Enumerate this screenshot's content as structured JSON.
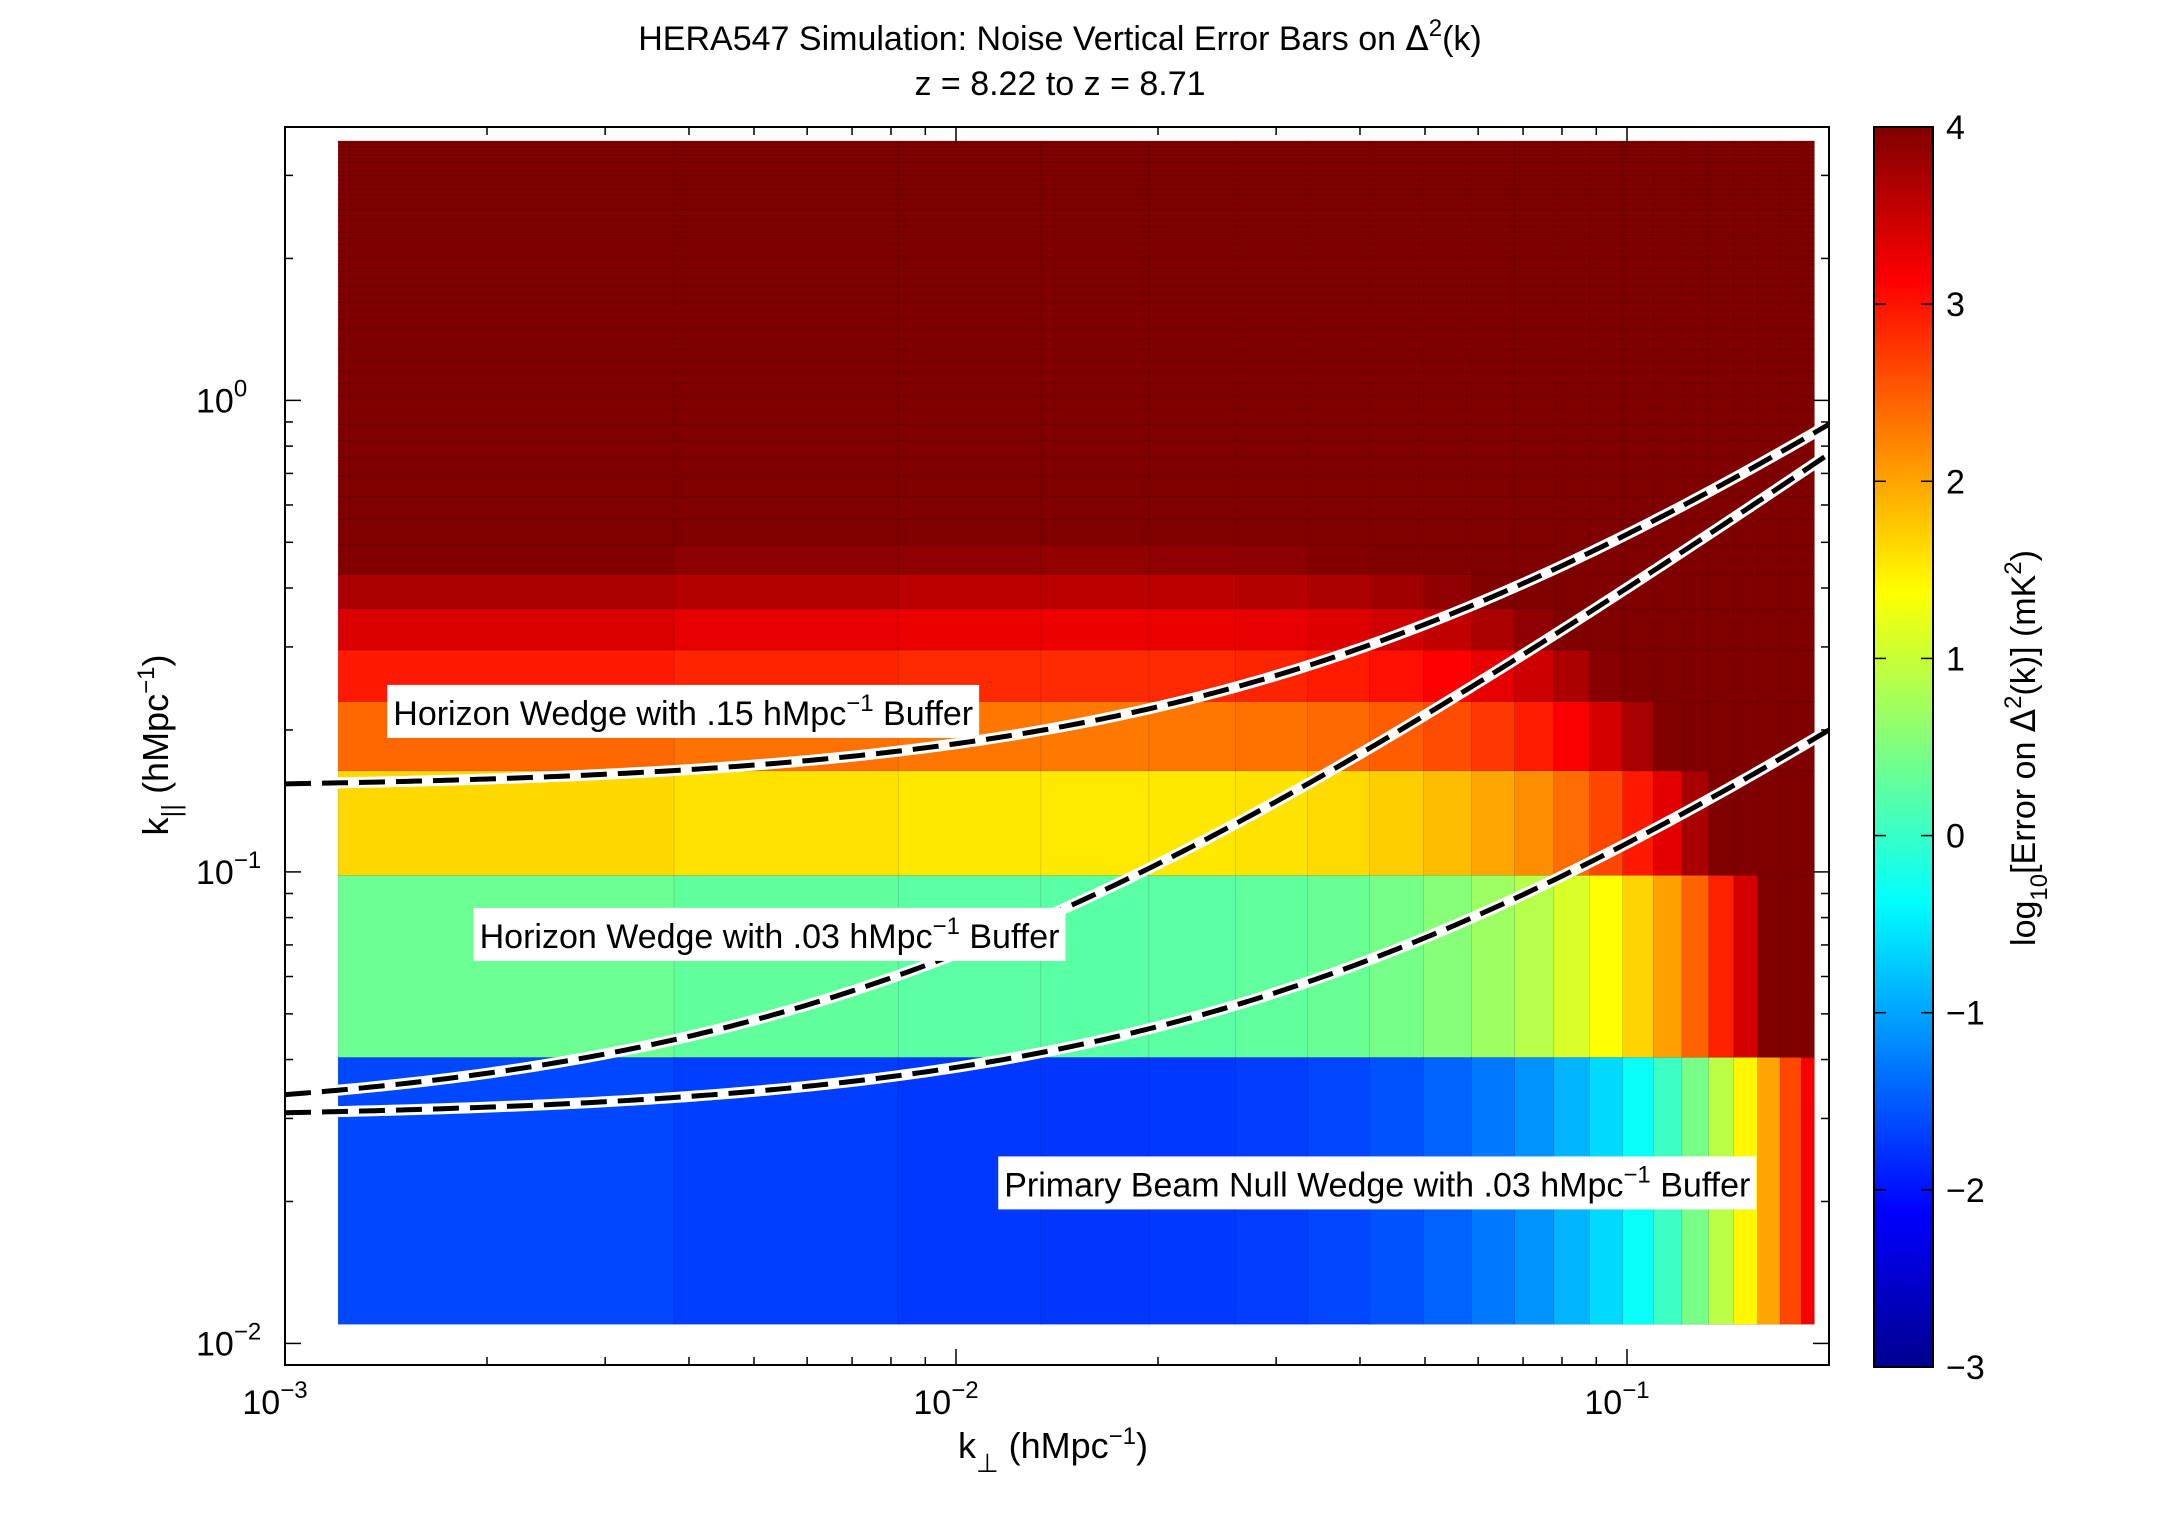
{
  "chart_data": {
    "type": "heatmap",
    "title_line1_main": "HERA547 Simulation: Noise Vertical Error Bars on ",
    "title_line1_delta": "Δ",
    "title_line1_sup": "2",
    "title_line1_tail": "(k)",
    "title_line2": "z = 8.22 to z = 8.71",
    "xlabel": {
      "base": "k",
      "sub": "⊥",
      "unit_main": "  (hMpc",
      "unit_sup": "−1",
      "unit_tail": ")"
    },
    "ylabel": {
      "base": "k",
      "sub": "||",
      "unit_main": "  (hMpc",
      "unit_sup": "−1",
      "unit_tail": ")"
    },
    "x_scale": "log",
    "y_scale": "log",
    "xlim": [
      0.001,
      0.2
    ],
    "ylim": [
      0.009,
      3.8
    ],
    "x_ticks": [
      {
        "value": 0.001,
        "base": "10",
        "exp": "−3"
      },
      {
        "value": 0.01,
        "base": "10",
        "exp": "−2"
      },
      {
        "value": 0.1,
        "base": "10",
        "exp": "−1"
      }
    ],
    "y_ticks": [
      {
        "value": 0.01,
        "base": "10",
        "exp": "−2"
      },
      {
        "value": 0.1,
        "base": "10",
        "exp": "−1"
      },
      {
        "value": 1,
        "base": "10",
        "exp": "0"
      }
    ],
    "data_extent": {
      "x": [
        0.0012,
        0.19
      ],
      "y": [
        0.011,
        3.55
      ]
    },
    "colorbar": {
      "min": -3,
      "max": 4,
      "ticks": [
        "−3",
        "−2",
        "−1",
        "0",
        "1",
        "2",
        "3",
        "4"
      ],
      "label_main": "log",
      "label_sub": "10",
      "label_mid": "[Error on ",
      "label_delta": "Δ",
      "label_sup": "2",
      "label_tail": "(k)]  (mK",
      "label_sup2": "2",
      "label_end": ")",
      "colormap": "jet"
    },
    "wedge_lines": [
      {
        "name": "Horizon Wedge with .15 hMpc⁻¹ Buffer",
        "slope": 3.7,
        "intercept": 0.15
      },
      {
        "name": "Horizon Wedge with .03 hMpc⁻¹ Buffer",
        "slope": 3.7,
        "intercept": 0.03
      },
      {
        "name": "Primary Beam Null Wedge with .03 hMpc⁻¹ Buffer",
        "slope": 0.85,
        "intercept": 0.03
      }
    ],
    "annotations": [
      {
        "id": "a1",
        "main": "Horizon Wedge with .15 hMpc",
        "sup": "−1",
        "tail": " Buffer",
        "x": 0.00145,
        "y": 0.205
      },
      {
        "id": "a2",
        "main": "Horizon Wedge with .03 hMpc",
        "sup": "−1",
        "tail": " Buffer",
        "x": 0.00195,
        "y": 0.069
      },
      {
        "id": "a3",
        "main": "Primary Beam Null Wedge with .03 hMpc",
        "sup": "−1",
        "tail": " Buffer",
        "x": 0.0118,
        "y": 0.0205
      }
    ]
  }
}
